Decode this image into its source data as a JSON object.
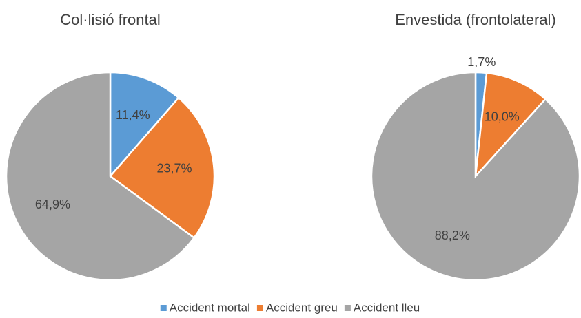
{
  "chart_data": [
    {
      "type": "pie",
      "title": "Col·lisió frontal",
      "categories": [
        "Accident mortal",
        "Accident greu",
        "Accident lleu"
      ],
      "values": [
        11.4,
        23.7,
        64.9
      ],
      "value_labels": [
        "11,4%",
        "23,7%",
        "64,9%"
      ],
      "colors": [
        "#5b9bd5",
        "#ed7d31",
        "#a5a5a5"
      ],
      "legend": "bottom"
    },
    {
      "type": "pie",
      "title": "Envestida (frontolateral)",
      "categories": [
        "Accident mortal",
        "Accident greu",
        "Accident lleu"
      ],
      "values": [
        1.7,
        10.0,
        88.2
      ],
      "value_labels": [
        "1,7%",
        "10,0%",
        "88,2%"
      ],
      "colors": [
        "#5b9bd5",
        "#ed7d31",
        "#a5a5a5"
      ],
      "legend": "bottom"
    }
  ]
}
